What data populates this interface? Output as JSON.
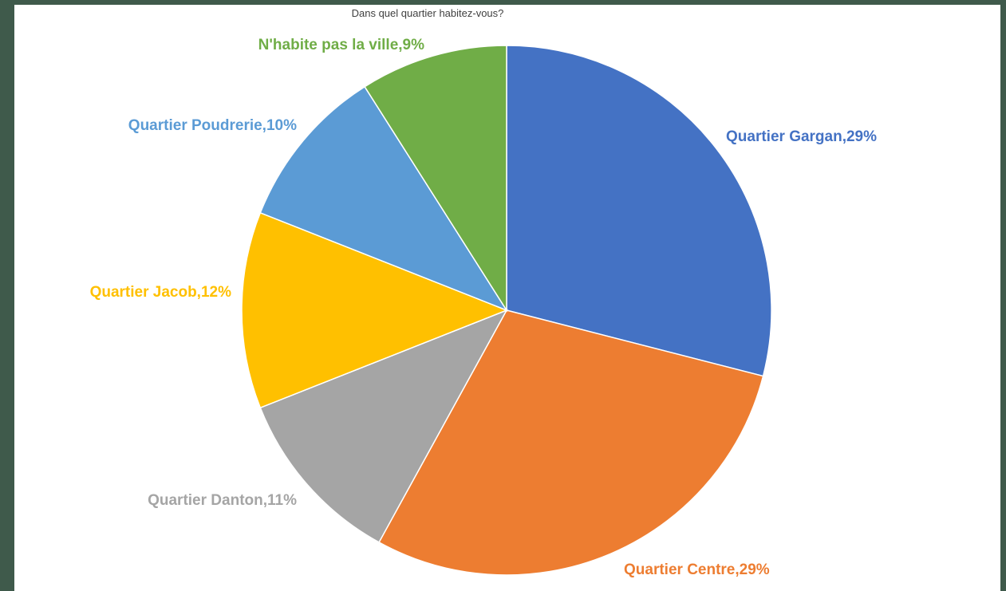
{
  "chart_data": {
    "type": "pie",
    "title": "Dans quel quartier habitez-vous?",
    "slices": [
      {
        "label": "Quartier Gargan",
        "value": 29,
        "display": "Quartier Gargan,29%",
        "color": "#4472C4"
      },
      {
        "label": "Quartier Centre",
        "value": 29,
        "display": "Quartier Centre,29%",
        "color": "#ED7D31"
      },
      {
        "label": "Quartier Danton",
        "value": 11,
        "display": "Quartier Danton,11%",
        "color": "#A5A5A5"
      },
      {
        "label": "Quartier Jacob",
        "value": 12,
        "display": "Quartier Jacob,12%",
        "color": "#FFC000"
      },
      {
        "label": "Quartier Poudrerie",
        "value": 10,
        "display": "Quartier Poudrerie,10%",
        "color": "#5B9BD5"
      },
      {
        "label": "N'habite pas la ville",
        "value": 9,
        "display": "N'habite pas la ville,9%",
        "color": "#70AD47"
      }
    ]
  }
}
